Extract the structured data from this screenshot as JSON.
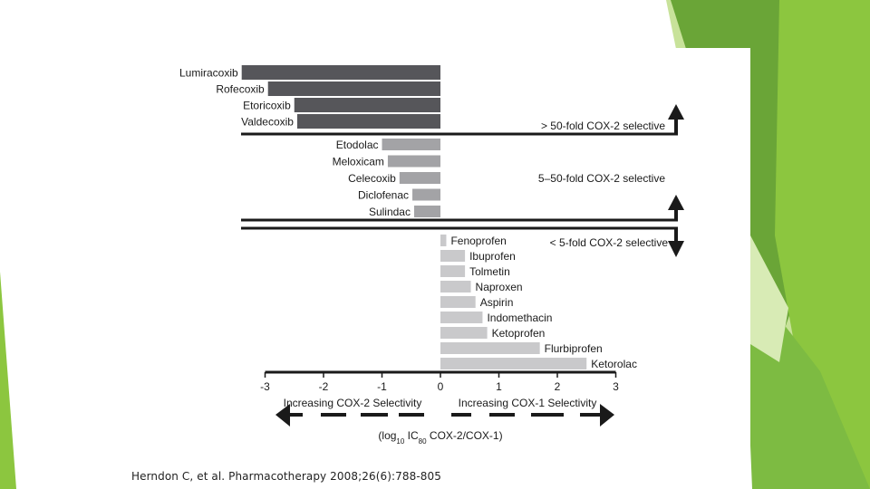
{
  "citation": "Herndon C, et al. Pharmacotherapy 2008;26(6):788-805",
  "colors": {
    "dark_bar": "#56565a",
    "mid_bar": "#a3a3a6",
    "light_bar": "#c9c9cb",
    "ink": "#1a1a1a",
    "accent_green": "#8cc63f",
    "accent_green_dark": "#6aa537",
    "accent_green_light": "#c8e29a"
  },
  "chart_data": {
    "type": "bar",
    "orientation": "horizontal",
    "xlabel": "(log10 IC80 COX-2/COX-1)",
    "xlim": [
      -3,
      3
    ],
    "x_ticks": [
      "-3",
      "-2",
      "-1",
      "0",
      "1",
      "2",
      "3"
    ],
    "direction_labels": {
      "left": "Increasing COX-2 Selectivity",
      "right": "Increasing COX-1 Selectivity"
    },
    "groups": [
      {
        "label": "> 50-fold COX-2 selective",
        "arrow": "up",
        "items": [
          {
            "drug": "Lumiracoxib",
            "value": -3.4
          },
          {
            "drug": "Rofecoxib",
            "value": -2.95
          },
          {
            "drug": "Etoricoxib",
            "value": -2.5
          },
          {
            "drug": "Valdecoxib",
            "value": -2.45
          }
        ]
      },
      {
        "label": "5–50-fold COX-2 selective",
        "arrow": "up",
        "items": [
          {
            "drug": "Etodolac",
            "value": -1.0
          },
          {
            "drug": "Meloxicam",
            "value": -0.9
          },
          {
            "drug": "Celecoxib",
            "value": -0.7
          },
          {
            "drug": "Diclofenac",
            "value": -0.48
          },
          {
            "drug": "Sulindac",
            "value": -0.45
          }
        ]
      },
      {
        "label": "< 5-fold COX-2 selective",
        "arrow": "down",
        "items": [
          {
            "drug": "Fenoprofen",
            "value": 0.1
          },
          {
            "drug": "Ibuprofen",
            "value": 0.42
          },
          {
            "drug": "Tolmetin",
            "value": 0.42
          },
          {
            "drug": "Naproxen",
            "value": 0.52
          },
          {
            "drug": "Aspirin",
            "value": 0.6
          },
          {
            "drug": "Indomethacin",
            "value": 0.72
          },
          {
            "drug": "Ketoprofen",
            "value": 0.8
          },
          {
            "drug": "Flurbiprofen",
            "value": 1.7
          },
          {
            "drug": "Ketorolac",
            "value": 2.5
          }
        ]
      }
    ]
  }
}
